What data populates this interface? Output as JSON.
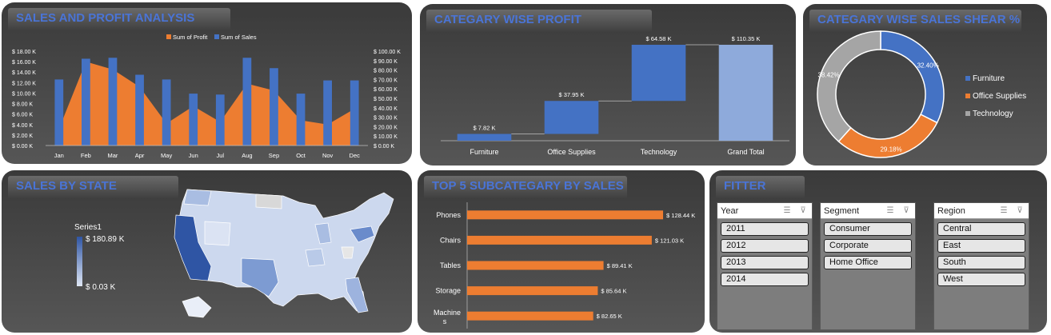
{
  "panels": {
    "sales_profit": {
      "title": "SALES AND PROFIT ANALYSIS"
    },
    "category_profit": {
      "title": "CATEGARY WISE PROFIT"
    },
    "category_share": {
      "title": "CATEGARY WISE SALES SHEAR %"
    },
    "sales_state": {
      "title": "SALES BY STATE"
    },
    "top5": {
      "title": "TOP 5 SUBCATEGARY BY SALES"
    },
    "filter": {
      "title": "FITTER"
    }
  },
  "colors": {
    "blue": "#4472c4",
    "orange": "#ed7d31",
    "gray": "#a5a5a5",
    "light_blue": "#8eaadb",
    "title_text": "#4a74d6"
  },
  "chart_data": [
    {
      "type": "bar",
      "title": "",
      "categories": [
        "Jan",
        "Feb",
        "Mar",
        "Apr",
        "May",
        "Jun",
        "Jul",
        "Aug",
        "Sep",
        "Oct",
        "Nov",
        "Dec"
      ],
      "series": [
        {
          "name": "Sum of Profit",
          "chart": "area",
          "axis": "left",
          "values": [
            3.2,
            16.0,
            14.5,
            11.2,
            4.2,
            7.5,
            4.5,
            11.8,
            10.5,
            4.8,
            4.0,
            7.0
          ]
        },
        {
          "name": "Sum of Sales",
          "chart": "bar",
          "axis": "right",
          "values": [
            70,
            92,
            93,
            75,
            70,
            55,
            54,
            93,
            82,
            55,
            69,
            69
          ]
        }
      ],
      "left_ticks": [
        "$ 0.00 K",
        "$ 2.00 K",
        "$ 4.00 K",
        "$ 6.00 K",
        "$ 8.00 K",
        "$ 10.00 K",
        "$ 12.00 K",
        "$ 14.00 K",
        "$ 16.00 K",
        "$ 18.00 K"
      ],
      "right_ticks": [
        "$ 0.00 K",
        "$ 10.00 K",
        "$ 20.00 K",
        "$ 30.00 K",
        "$ 40.00 K",
        "$ 50.00 K",
        "$ 60.00 K",
        "$ 70.00 K",
        "$ 80.00 K",
        "$ 90.00 K",
        "$ 100.00 K"
      ],
      "ylim_left": [
        0,
        18
      ],
      "ylim_right": [
        0,
        100
      ],
      "legend": "top"
    },
    {
      "type": "bar",
      "subtype": "waterfall",
      "categories": [
        "Furniture",
        "Office Supplies",
        "Technology",
        "Grand Total"
      ],
      "values": [
        7.82,
        37.95,
        64.58,
        110.35
      ],
      "labels": [
        "$ 7.82 K",
        "$ 37.95 K",
        "$ 64.58 K",
        "$ 110.35 K"
      ]
    },
    {
      "type": "pie",
      "subtype": "donut",
      "categories": [
        "Furniture",
        "Office Supplies",
        "Technology"
      ],
      "values": [
        32.4,
        29.18,
        38.42
      ],
      "labels": [
        "32.40%",
        "29.18%",
        "38.42%"
      ],
      "legend": "right"
    },
    {
      "type": "bar",
      "orientation": "horizontal",
      "categories": [
        "Phones",
        "Chairs",
        "Tables",
        "Storage",
        "Machine s"
      ],
      "values": [
        128.44,
        121.03,
        89.41,
        85.64,
        82.65
      ],
      "labels": [
        "$ 128.44 K",
        "$ 121.03 K",
        "$ 89.41 K",
        "$ 85.64 K",
        "$ 82.65 K"
      ]
    }
  ],
  "map": {
    "legend_title": "Series1",
    "max_label": "$ 180.89 K",
    "min_label": "$ 0.03 K"
  },
  "filter": {
    "slicers": [
      {
        "title": "Year",
        "items": [
          "2011",
          "2012",
          "2013",
          "2014"
        ]
      },
      {
        "title": "Segment",
        "items": [
          "Consumer",
          "Corporate",
          "Home Office"
        ]
      },
      {
        "title": "Region",
        "items": [
          "Central",
          "East",
          "South",
          "West"
        ]
      }
    ]
  }
}
